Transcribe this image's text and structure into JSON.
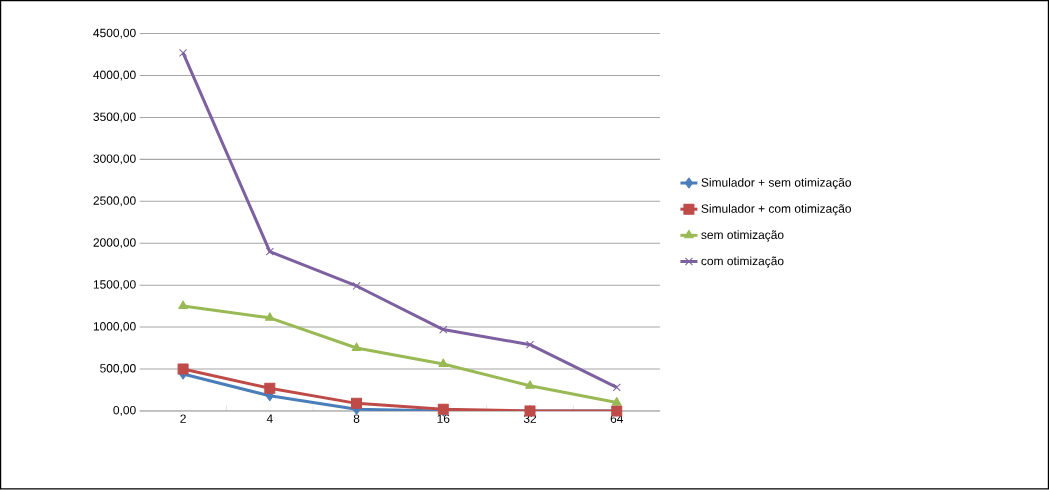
{
  "chart_data": {
    "type": "line",
    "categories": [
      "2",
      "4",
      "8",
      "16",
      "32",
      "64"
    ],
    "ylim": [
      0,
      4500
    ],
    "yticks": [
      {
        "value": 0,
        "label": "0,00"
      },
      {
        "value": 500,
        "label": "500,00"
      },
      {
        "value": 1000,
        "label": "1000,00"
      },
      {
        "value": 1500,
        "label": "1500,00"
      },
      {
        "value": 2000,
        "label": "2000,00"
      },
      {
        "value": 2500,
        "label": "2500,00"
      },
      {
        "value": 3000,
        "label": "3000,00"
      },
      {
        "value": 3500,
        "label": "3500,00"
      },
      {
        "value": 4000,
        "label": "4000,00"
      },
      {
        "value": 4500,
        "label": "4500,00"
      }
    ],
    "grid": "y",
    "legend": "right",
    "series": [
      {
        "name": "Simulador + sem otimização",
        "color": "#4a7ebb",
        "marker": "diamond",
        "values": [
          440,
          180,
          20,
          0,
          0,
          0
        ]
      },
      {
        "name": "Simulador + com otimização",
        "color": "#be4b48",
        "marker": "square",
        "values": [
          500,
          270,
          90,
          20,
          0,
          0
        ]
      },
      {
        "name": "sem otimização",
        "color": "#98b954",
        "marker": "triangle",
        "values": [
          1250,
          1110,
          750,
          560,
          300,
          100
        ]
      },
      {
        "name": "com otimização",
        "color": "#7d60a0",
        "marker": "cross",
        "values": [
          4270,
          1900,
          1490,
          970,
          790,
          280
        ]
      }
    ]
  }
}
